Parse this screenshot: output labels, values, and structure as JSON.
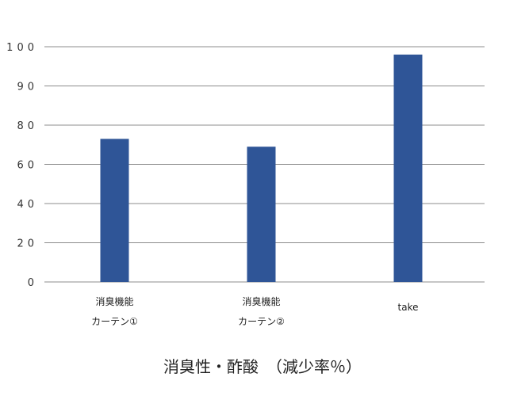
{
  "chart_data": {
    "type": "bar",
    "title": "消臭性・酢酸　（減少率％）",
    "categories": [
      [
        "消臭機能",
        "カーテン①"
      ],
      [
        "消臭機能",
        "カーテン②"
      ],
      [
        "take"
      ]
    ],
    "values": [
      73,
      69,
      98
    ],
    "y_ticks": [
      "0",
      "20",
      "40",
      "60",
      "80",
      "90",
      "100"
    ],
    "ylim": [
      0,
      100
    ],
    "xlabel": "",
    "ylabel": "",
    "grid": true,
    "legend": "none",
    "bar_color": "#2f5597",
    "grid_color": "#8c8c8c"
  }
}
